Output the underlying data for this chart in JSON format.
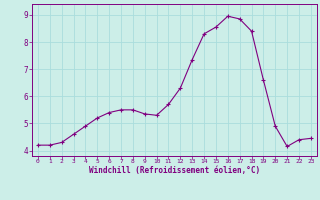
{
  "x": [
    0,
    1,
    2,
    3,
    4,
    5,
    6,
    7,
    8,
    9,
    10,
    11,
    12,
    13,
    14,
    15,
    16,
    17,
    18,
    19,
    20,
    21,
    22,
    23
  ],
  "y": [
    4.2,
    4.2,
    4.3,
    4.6,
    4.9,
    5.2,
    5.4,
    5.5,
    5.5,
    5.35,
    5.3,
    5.7,
    6.3,
    7.35,
    8.3,
    8.55,
    8.95,
    8.85,
    8.4,
    6.6,
    4.9,
    4.15,
    4.4,
    4.45
  ],
  "line_color": "#800080",
  "marker": "+",
  "marker_color": "#800080",
  "bg_color": "#cceee8",
  "grid_color": "#aadddd",
  "xlabel": "Windchill (Refroidissement éolien,°C)",
  "xlabel_color": "#800080",
  "tick_color": "#800080",
  "ylim": [
    3.8,
    9.4
  ],
  "xlim": [
    -0.5,
    23.5
  ],
  "yticks": [
    4,
    5,
    6,
    7,
    8,
    9
  ],
  "xticks": [
    0,
    1,
    2,
    3,
    4,
    5,
    6,
    7,
    8,
    9,
    10,
    11,
    12,
    13,
    14,
    15,
    16,
    17,
    18,
    19,
    20,
    21,
    22,
    23
  ],
  "spine_color": "#800080",
  "figsize": [
    3.2,
    2.0
  ],
  "dpi": 100
}
